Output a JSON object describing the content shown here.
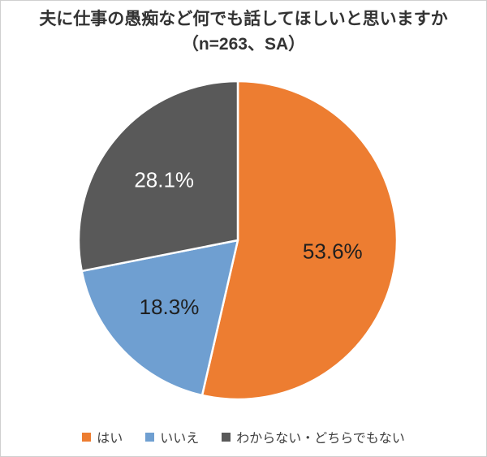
{
  "chart": {
    "title": "夫に仕事の愚痴など何でも話してほしいと思いますか",
    "subtitle": "（n=263、SA）"
  },
  "chart_data": {
    "type": "pie",
    "title": "夫に仕事の愚痴など何でも話してほしいと思いますか",
    "subtitle": "（n=263、SA）",
    "n": 263,
    "survey_type": "SA",
    "labels": [
      "はい",
      "いいえ",
      "わからない・どちらでもない"
    ],
    "values": [
      53.6,
      18.3,
      28.1
    ],
    "data_labels": [
      "53.6%",
      "18.3%",
      "28.1%"
    ],
    "colors": [
      "#ed7d31",
      "#6f9fd1",
      "#595959"
    ],
    "label_colors": [
      "#1f1f1f",
      "#1f1f1f",
      "#ffffff"
    ],
    "start_angle_deg": 0,
    "direction": "clockwise",
    "legend_position": "bottom",
    "slice_border_color": "#ffffff"
  },
  "legend": {
    "items": [
      {
        "label": "はい",
        "color": "#ed7d31"
      },
      {
        "label": "いいえ",
        "color": "#6f9fd1"
      },
      {
        "label": "わからない・どちらでもない",
        "color": "#595959"
      }
    ]
  }
}
